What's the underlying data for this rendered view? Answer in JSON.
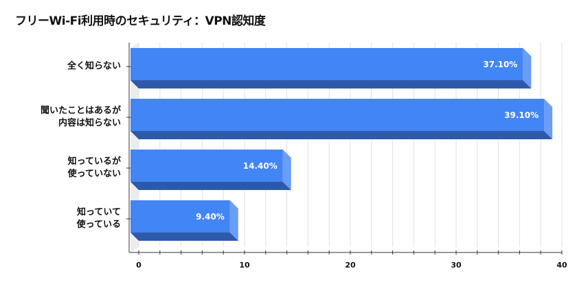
{
  "chart_data": {
    "type": "bar",
    "orientation": "horizontal",
    "style": "3d",
    "title": "フリーWi-Fi利用時のセキュリティ：VPN認知度",
    "categories": [
      [
        "全く知らない"
      ],
      [
        "聞いたことはあるが",
        "内容は知らない"
      ],
      [
        "知っているが",
        "使っていない"
      ],
      [
        "知っていて",
        "使っている"
      ]
    ],
    "values": [
      37.1,
      39.1,
      14.4,
      9.4
    ],
    "data_labels": [
      "37.10%",
      "39.10%",
      "14.40%",
      "9.40%"
    ],
    "xlim": [
      0,
      40
    ],
    "xticks": [
      "0",
      "10",
      "20",
      "30",
      "40"
    ],
    "grid": true,
    "legend": "none",
    "colors": {
      "front": "#4285f4",
      "bottom": "#2d5aa8",
      "side": "#6a9df6"
    }
  }
}
